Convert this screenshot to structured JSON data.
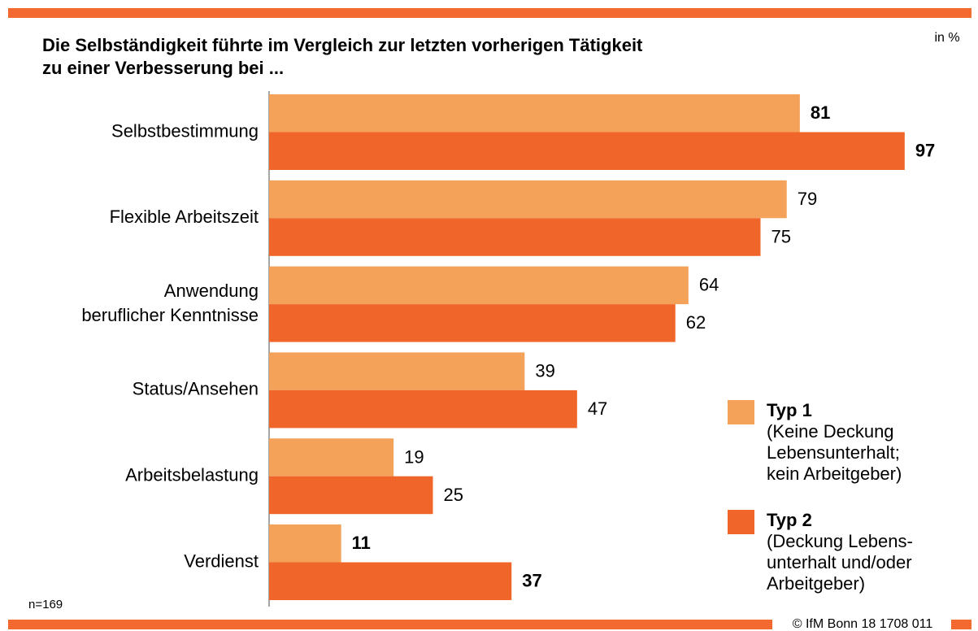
{
  "chart_data": {
    "type": "hbar",
    "title": "Die Selbständigkeit führte im Vergleich zur letzten vorherigen Tätigkeit\nzu einer Verbesserung bei ...",
    "unit_note": "in %",
    "footnote": "n=169",
    "source": "© IfM Bonn 18 1708 011",
    "categories": [
      "Selbstbestimmung",
      "Flexible Arbeitszeit",
      "Anwendung\nberuflicher Kenntnisse",
      "Status/Ansehen",
      "Arbeitsbelastung",
      "Verdienst"
    ],
    "series": [
      {
        "name": "Typ 1",
        "description": [
          "(Keine Deckung",
          "Lebensunterhalt;",
          "kein Arbeitgeber)"
        ],
        "color": "#f4a25a",
        "values": [
          81,
          79,
          64,
          39,
          19,
          11
        ],
        "bold": [
          true,
          false,
          false,
          false,
          false,
          true
        ]
      },
      {
        "name": "Typ 2",
        "description": [
          "(Deckung Lebens-",
          "unterhalt und/oder",
          "Arbeitgeber)"
        ],
        "color": "#f0662a",
        "values": [
          97,
          75,
          62,
          47,
          25,
          37
        ],
        "bold": [
          true,
          false,
          false,
          false,
          false,
          true
        ]
      }
    ],
    "xlim": [
      0,
      100
    ],
    "legend": "lower right"
  }
}
